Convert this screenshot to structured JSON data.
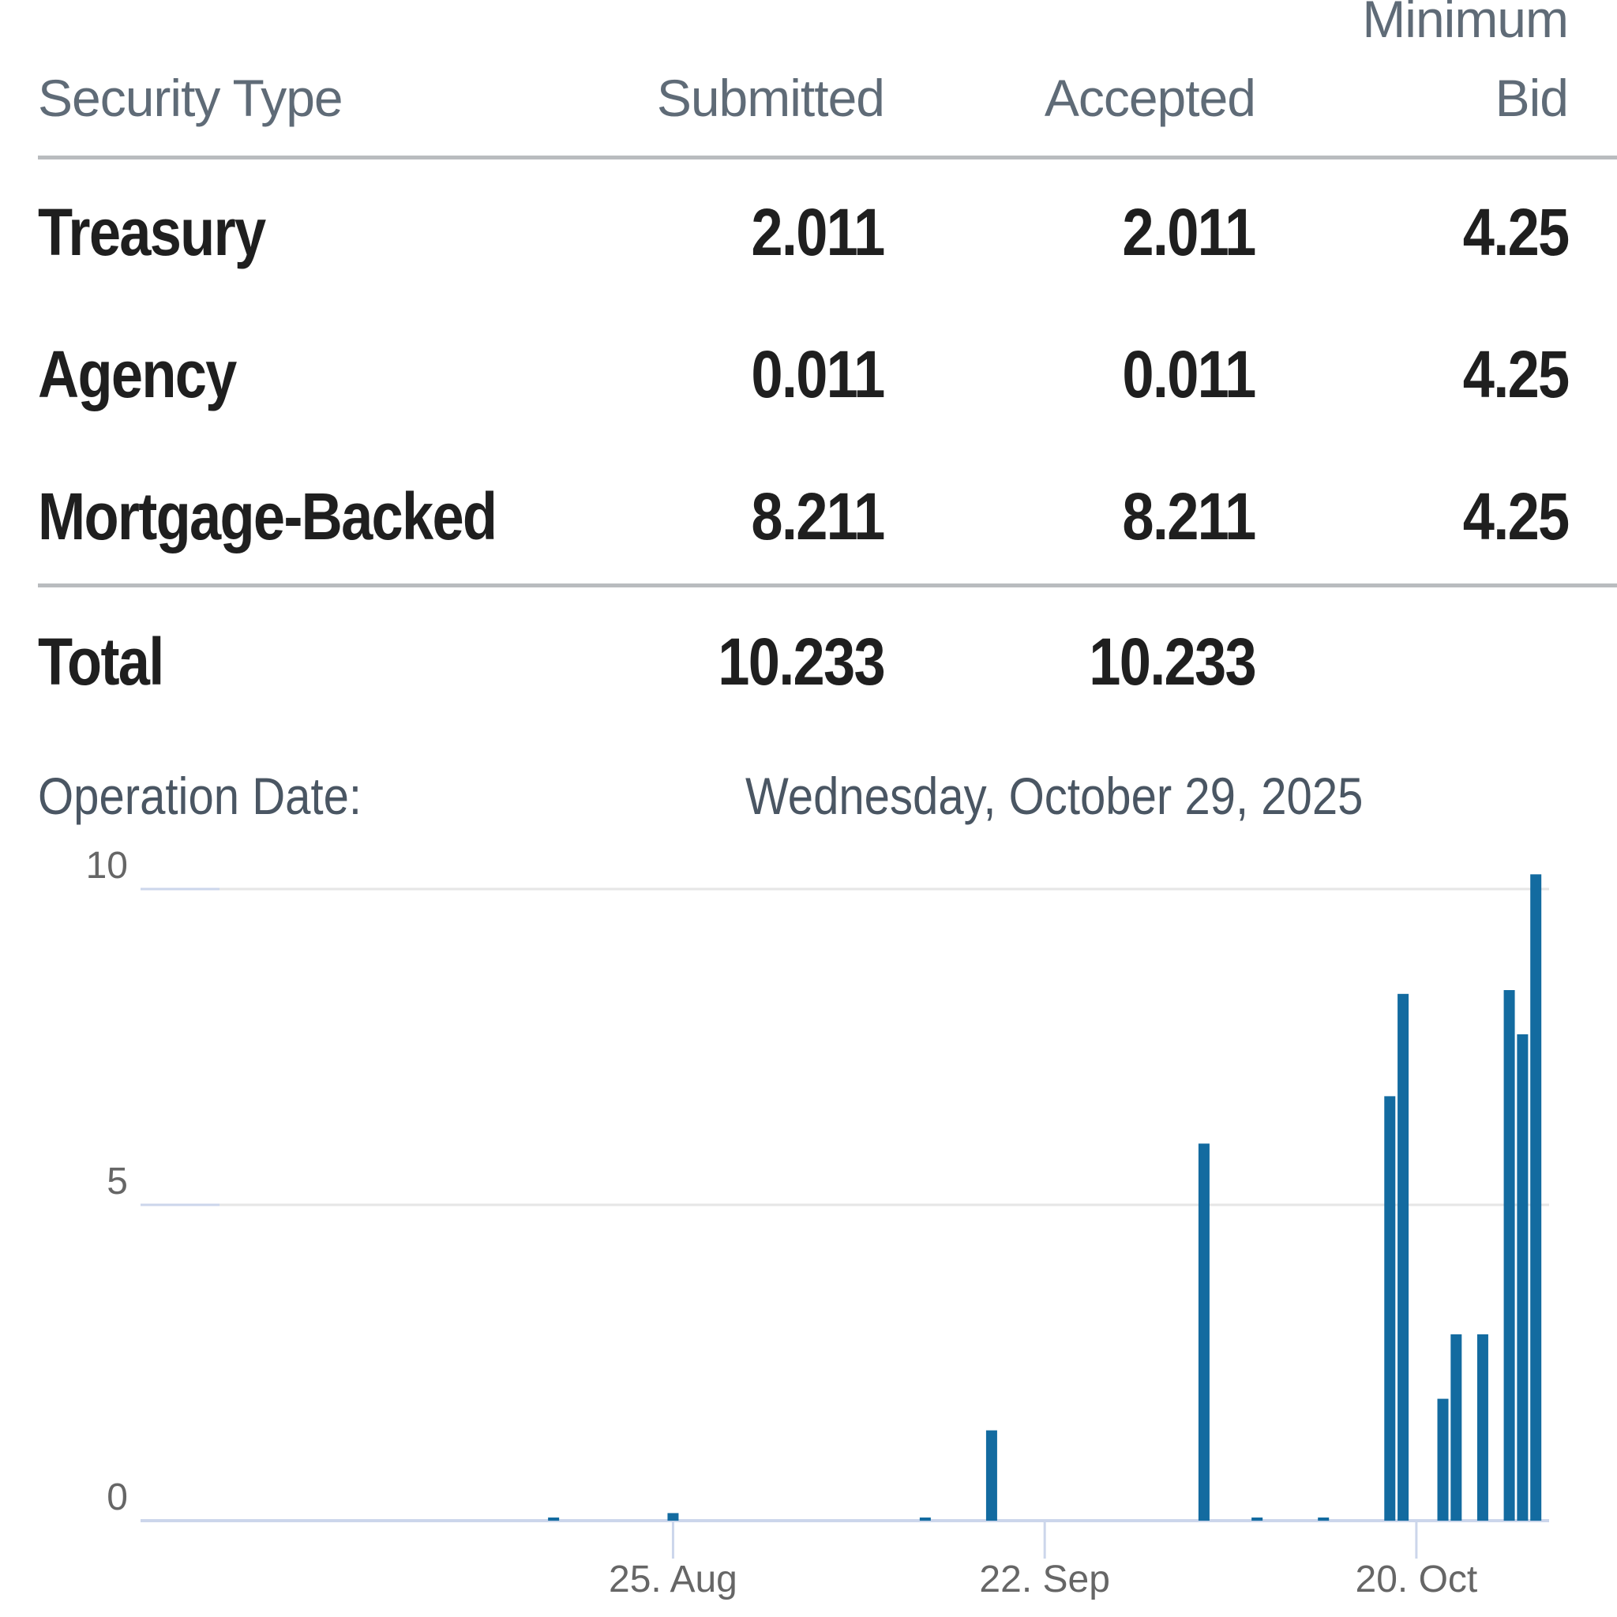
{
  "table": {
    "headers": {
      "security_type": "Security Type",
      "submitted": "Submitted",
      "accepted": "Accepted",
      "minimum_line1": "Minimum",
      "minimum_line2": "Bid"
    },
    "rows": [
      {
        "type": "Treasury",
        "submitted": "2.011",
        "accepted": "2.011",
        "minimum_bid": "4.25"
      },
      {
        "type": "Agency",
        "submitted": "0.011",
        "accepted": "0.011",
        "minimum_bid": "4.25"
      },
      {
        "type": "Mortgage-Backed",
        "submitted": "8.211",
        "accepted": "8.211",
        "minimum_bid": "4.25"
      }
    ],
    "total": {
      "label": "Total",
      "submitted": "10.233",
      "accepted": "10.233"
    }
  },
  "operation": {
    "label": "Operation Date:",
    "value": "Wednesday, October 29, 2025"
  },
  "chart_data": {
    "type": "bar",
    "title": "",
    "xlabel": "",
    "ylabel": "",
    "ylim": [
      0,
      10
    ],
    "yticks": [
      0,
      5,
      10
    ],
    "xticks": [
      {
        "date": "2025-08-25",
        "label": "25. Aug"
      },
      {
        "date": "2025-09-22",
        "label": "22. Sep"
      },
      {
        "date": "2025-10-20",
        "label": "20. Oct"
      }
    ],
    "xlim": [
      "2025-07-16",
      "2025-10-30"
    ],
    "grid": true,
    "color": "#136ba0",
    "series": [
      {
        "values": [
          {
            "x": "2025-08-16",
            "y": 0.05
          },
          {
            "x": "2025-08-25",
            "y": 0.12
          },
          {
            "x": "2025-09-13",
            "y": 0.05
          },
          {
            "x": "2025-09-18",
            "y": 1.43
          },
          {
            "x": "2025-10-04",
            "y": 5.97
          },
          {
            "x": "2025-10-08",
            "y": 0.05
          },
          {
            "x": "2025-10-13",
            "y": 0.05
          },
          {
            "x": "2025-10-18",
            "y": 6.72
          },
          {
            "x": "2025-10-19",
            "y": 8.34
          },
          {
            "x": "2025-10-22",
            "y": 1.93
          },
          {
            "x": "2025-10-23",
            "y": 2.95
          },
          {
            "x": "2025-10-25",
            "y": 2.95
          },
          {
            "x": "2025-10-27",
            "y": 8.4
          },
          {
            "x": "2025-10-28",
            "y": 7.7
          },
          {
            "x": "2025-10-29",
            "y": 10.233
          }
        ]
      }
    ]
  }
}
